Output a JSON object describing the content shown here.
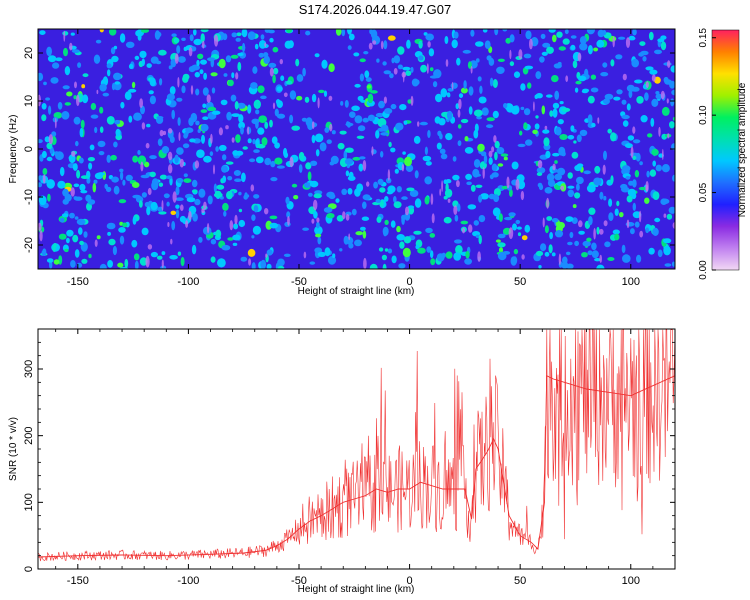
{
  "title": "S174.2026.044.19.47.G07",
  "chart_data": [
    {
      "type": "heatmap",
      "xlabel": "Height of straight line (km)",
      "ylabel": "Frequency (Hz)",
      "xlim": [
        -168,
        120
      ],
      "ylim": [
        -25,
        25
      ],
      "x_ticks": [
        -150,
        -100,
        -50,
        0,
        50,
        100
      ],
      "x_tick_labels": [
        "-150",
        "-100",
        "-50",
        "0",
        "50",
        "100"
      ],
      "y_ticks": [
        -20,
        -10,
        0,
        10,
        20
      ],
      "y_tick_labels": [
        "-20",
        "-10",
        "0",
        "10",
        "20"
      ],
      "colorbar": {
        "label": "Normalized spectral amplitude",
        "range": [
          0.0,
          0.155
        ],
        "ticks": [
          0.0,
          0.05,
          0.1,
          0.15
        ],
        "tick_labels": [
          "0.00",
          "0.05",
          "0.10",
          "0.15"
        ],
        "colors": [
          "#f2d8f4",
          "#c080f0",
          "#8a2be2",
          "#2020ff",
          "#1f6fff",
          "#00c8ff",
          "#00e0b0",
          "#00f060",
          "#a0f000",
          "#ffe000",
          "#ff8000",
          "#ff2060"
        ]
      },
      "background_color": "#3a1fe0",
      "blob_colors": [
        "#1a8cff",
        "#00c8ff",
        "#00e0d0",
        "#00e080",
        "#40ff40",
        "#ffd000"
      ]
    },
    {
      "type": "line",
      "xlabel": "Height of straight line (km)",
      "ylabel": "SNR (10 * v/v)",
      "xlim": [
        -168,
        120
      ],
      "ylim": [
        0,
        360
      ],
      "x_ticks": [
        -150,
        -100,
        -50,
        0,
        50,
        100
      ],
      "x_tick_labels": [
        "-150",
        "-100",
        "-50",
        "0",
        "50",
        "100"
      ],
      "y_ticks": [
        0,
        100,
        200,
        300
      ],
      "y_tick_labels": [
        "0",
        "100",
        "200",
        "300"
      ],
      "line_color": "#f03030",
      "series": [
        {
          "name": "SNR",
          "x": [
            -168,
            -150,
            -130,
            -110,
            -90,
            -75,
            -65,
            -60,
            -55,
            -50,
            -45,
            -40,
            -35,
            -30,
            -25,
            -20,
            -15,
            -10,
            -5,
            0,
            5,
            10,
            15,
            20,
            25,
            28,
            30,
            35,
            38,
            40,
            45,
            50,
            55,
            58,
            61,
            62,
            65,
            70,
            75,
            80,
            90,
            100,
            110,
            120
          ],
          "y": [
            18,
            20,
            21,
            20,
            22,
            24,
            28,
            35,
            45,
            60,
            72,
            80,
            90,
            100,
            105,
            110,
            120,
            115,
            120,
            120,
            130,
            125,
            120,
            120,
            120,
            75,
            150,
            175,
            195,
            180,
            80,
            50,
            40,
            30,
            100,
            290,
            285,
            280,
            275,
            270,
            265,
            260,
            275,
            290
          ]
        }
      ]
    }
  ]
}
